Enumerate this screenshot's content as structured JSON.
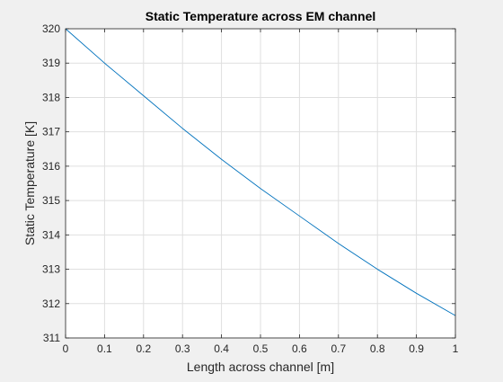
{
  "chart_data": {
    "type": "line",
    "title": "Static Temperature across EM channel",
    "xlabel": "Length across channel [m]",
    "ylabel": "Static Temperature [K]",
    "xlim": [
      0,
      1
    ],
    "ylim": [
      311,
      320
    ],
    "xticks": [
      0,
      0.1,
      0.2,
      0.3,
      0.4,
      0.5,
      0.6,
      0.7,
      0.8,
      0.9,
      1
    ],
    "xtick_labels": [
      "0",
      "0.1",
      "0.2",
      "0.3",
      "0.4",
      "0.5",
      "0.6",
      "0.7",
      "0.8",
      "0.9",
      "1"
    ],
    "yticks": [
      311,
      312,
      313,
      314,
      315,
      316,
      317,
      318,
      319,
      320
    ],
    "ytick_labels": [
      "311",
      "312",
      "313",
      "314",
      "315",
      "316",
      "317",
      "318",
      "319",
      "320"
    ],
    "grid": true,
    "box": true,
    "series": [
      {
        "color": "#0072BD",
        "x": [
          0,
          0.1,
          0.2,
          0.3,
          0.4,
          0.5,
          0.6,
          0.7,
          0.8,
          0.9,
          1
        ],
        "y": [
          320,
          319,
          318.05,
          317.1,
          316.2,
          315.35,
          314.55,
          313.75,
          313.0,
          312.3,
          311.65
        ]
      }
    ]
  },
  "colors": {
    "figure_background": "#f0f0f0",
    "axes_background": "#ffffff",
    "axis_line": "#262626",
    "grid": "#dfdfdf"
  }
}
